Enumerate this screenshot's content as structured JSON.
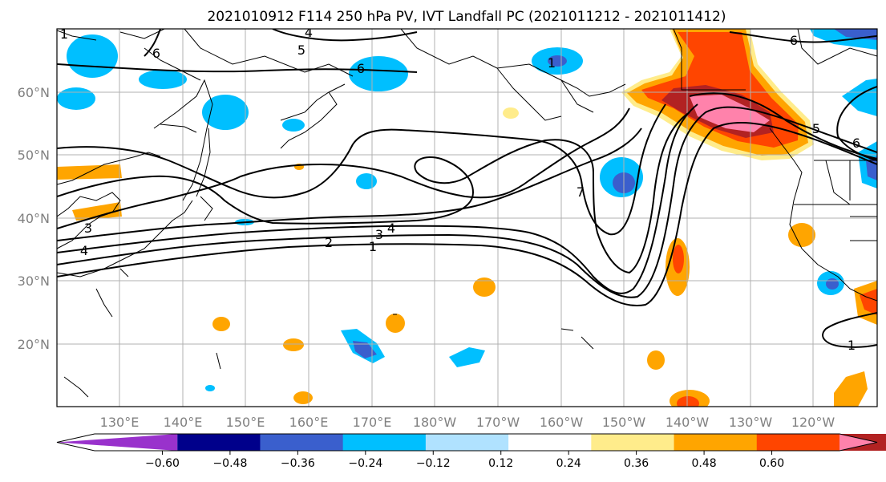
{
  "title": "2021010912 F114 250 hPa PV, IVT Landfall PC (2021011212 - 2021011412)",
  "lat_labels": [
    "60°N",
    "50°N",
    "40°N",
    "30°N",
    "20°N"
  ],
  "lon_labels": [
    "130°E",
    "140°E",
    "150°E",
    "160°E",
    "170°E",
    "180°W",
    "170°W",
    "160°W",
    "150°W",
    "140°W",
    "130°W",
    "120°W"
  ],
  "contour_labels": [
    "5",
    "6",
    "6",
    "6",
    "1",
    "4",
    "4",
    "3",
    "2",
    "1",
    "1",
    "7",
    "5",
    "6",
    "1",
    "4",
    "3"
  ],
  "colorbar": {
    "colors": [
      "#9932cc",
      "#00008b",
      "#3a5fcd",
      "#00bfff",
      "#b0e2ff",
      "#ffffff",
      "#ffec8b",
      "#ffa500",
      "#ff4500",
      "#b22222",
      "#ff82ab"
    ],
    "ticks": [
      "−0.60",
      "−0.48",
      "−0.36",
      "−0.24",
      "−0.12",
      "0.12",
      "0.24",
      "0.36",
      "0.48",
      "0.60"
    ]
  }
}
